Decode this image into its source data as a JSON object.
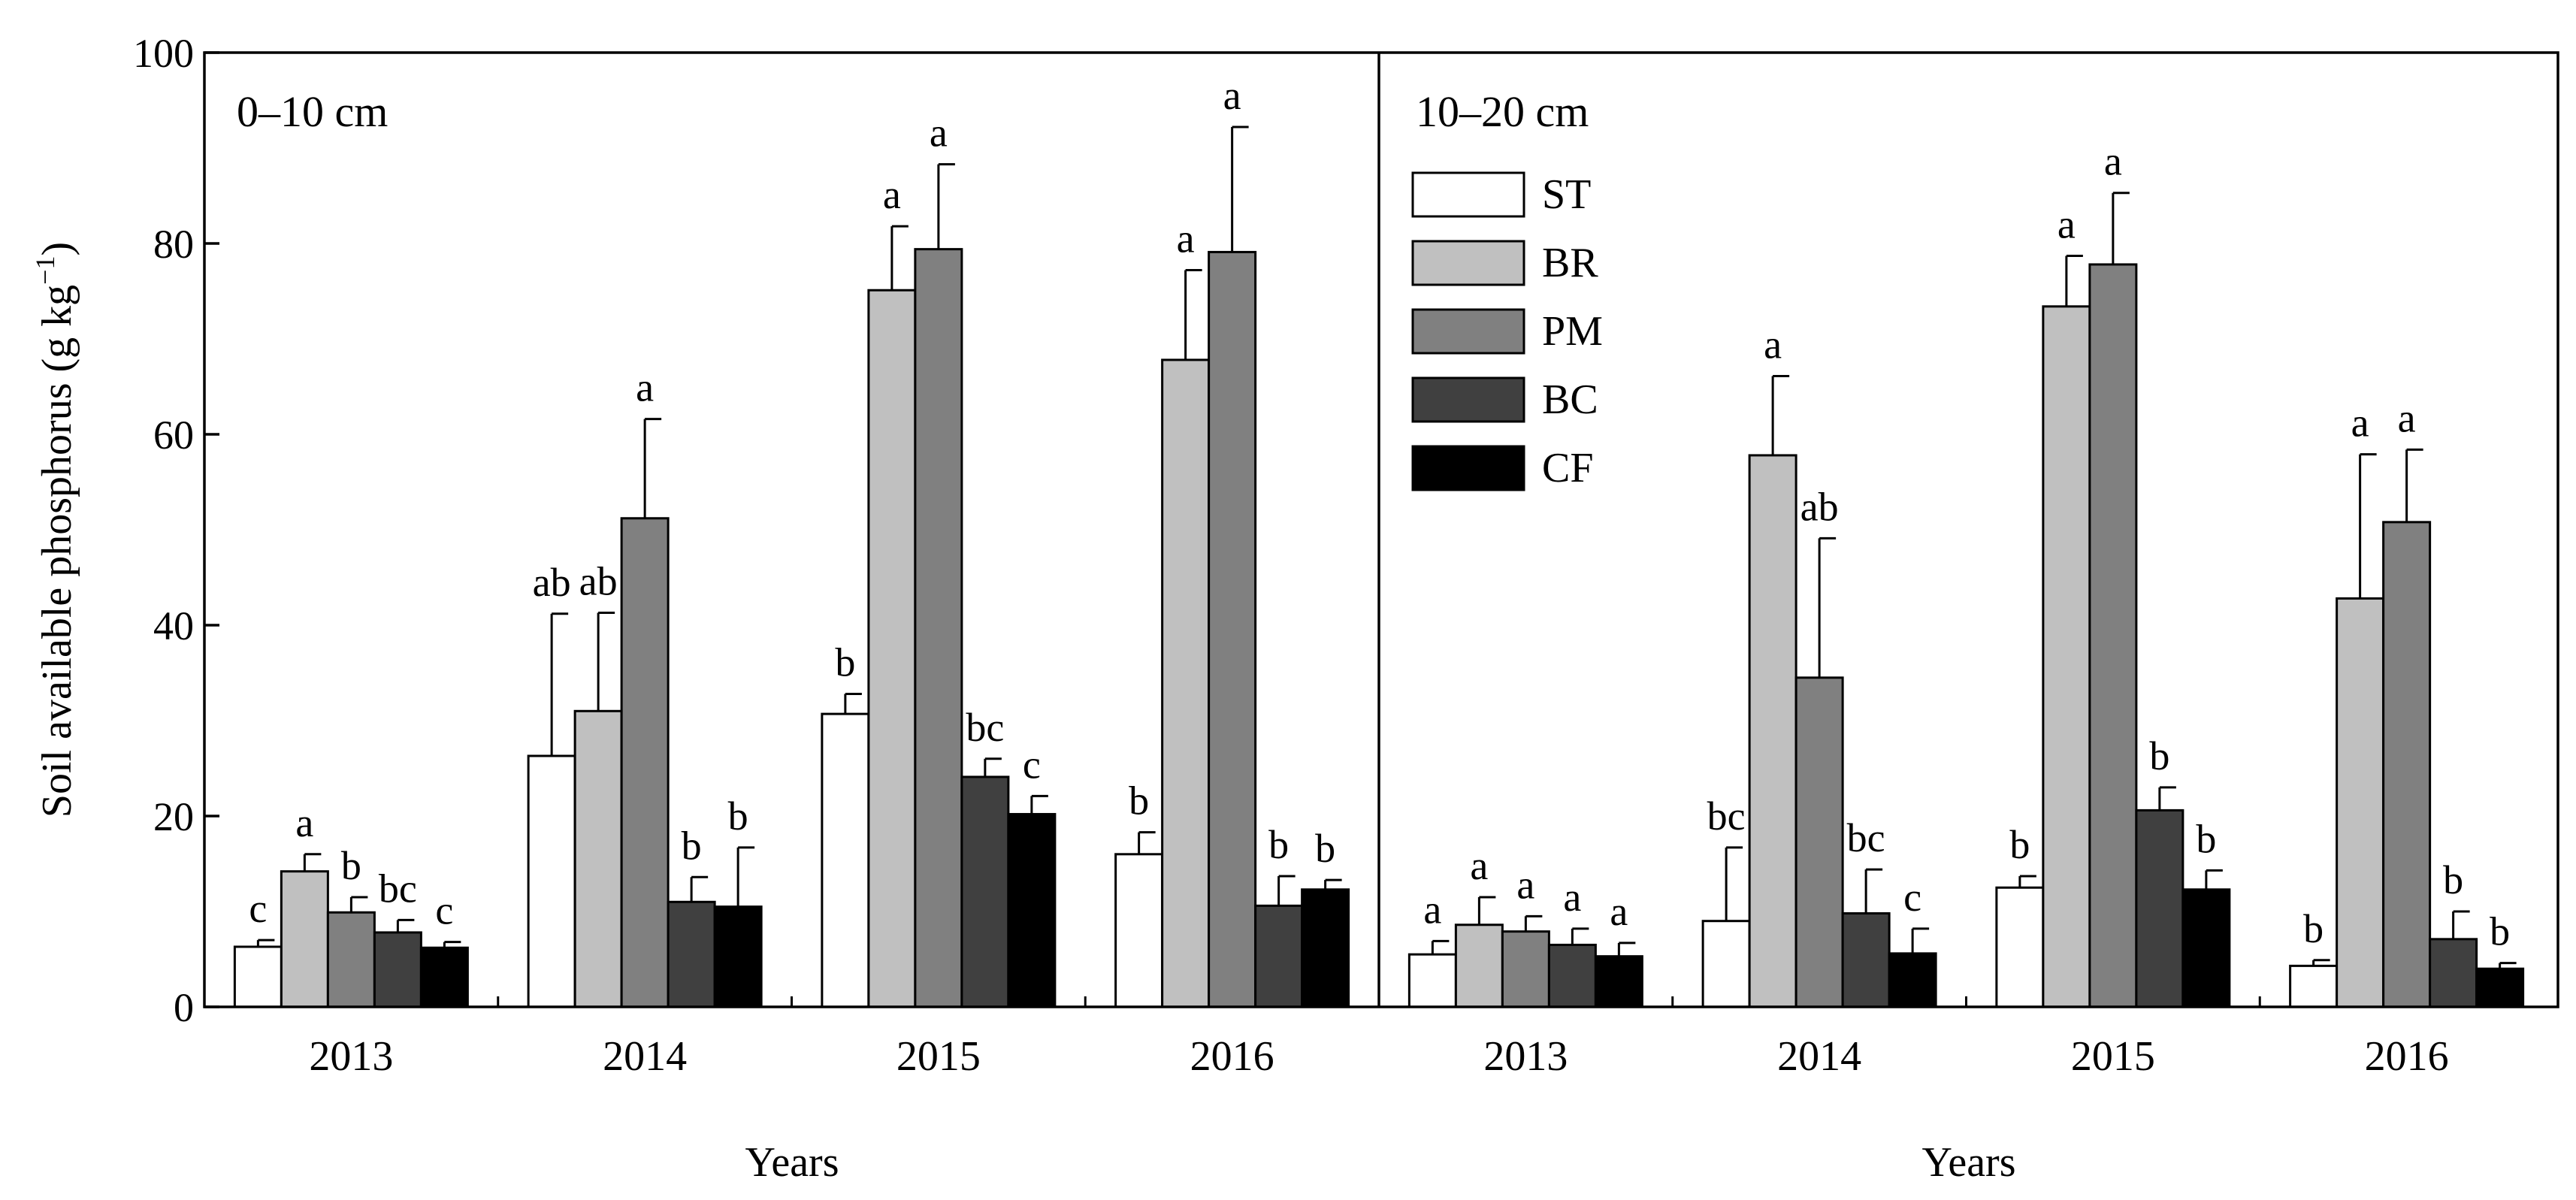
{
  "y_axis_label": "Soil available phosphorus (g kg",
  "y_axis_label_sup": "−1",
  "y_axis_label_close": ")",
  "chart_data": {
    "type": "bar",
    "ylabel": "Soil available phosphorus (g kg−1)",
    "ylim": [
      0,
      100
    ],
    "yticks": [
      0,
      20,
      40,
      60,
      80,
      100
    ],
    "legend": {
      "placement": "upper-left of right panel",
      "entries": [
        {
          "name": "ST",
          "color": "#ffffff"
        },
        {
          "name": "BR",
          "color": "#c0c0c0"
        },
        {
          "name": "PM",
          "color": "#808080"
        },
        {
          "name": "BC",
          "color": "#404040"
        },
        {
          "name": "CF",
          "color": "#000000"
        }
      ]
    },
    "panels": [
      {
        "title": "0–10 cm",
        "xlabel": "Years",
        "categories": [
          "2013",
          "2014",
          "2015",
          "2016"
        ],
        "series": [
          {
            "name": "ST",
            "values": [
              6.3,
              26.3,
              30.7,
              16.0
            ],
            "errors": [
              0.7,
              14.9,
              2.1,
              2.3
            ],
            "letters": [
              "c",
              "ab",
              "b",
              "b"
            ]
          },
          {
            "name": "BR",
            "values": [
              14.2,
              31.0,
              75.1,
              67.8
            ],
            "errors": [
              1.8,
              10.3,
              6.7,
              9.4
            ],
            "letters": [
              "a",
              "ab",
              "a",
              "a"
            ]
          },
          {
            "name": "PM",
            "values": [
              9.9,
              51.2,
              79.4,
              79.1
            ],
            "errors": [
              1.6,
              10.4,
              8.9,
              13.1
            ],
            "letters": [
              "b",
              "a",
              "a",
              "a"
            ]
          },
          {
            "name": "BC",
            "values": [
              7.8,
              11.0,
              24.1,
              10.6
            ],
            "errors": [
              1.3,
              2.6,
              1.9,
              3.1
            ],
            "letters": [
              "bc",
              "b",
              "bc",
              "b"
            ]
          },
          {
            "name": "CF",
            "values": [
              6.2,
              10.5,
              20.2,
              12.3
            ],
            "errors": [
              0.6,
              6.2,
              1.9,
              1.0
            ],
            "letters": [
              "c",
              "b",
              "c",
              "b"
            ]
          }
        ]
      },
      {
        "title": "10–20 cm",
        "xlabel": "Years",
        "categories": [
          "2013",
          "2014",
          "2015",
          "2016"
        ],
        "series": [
          {
            "name": "ST",
            "values": [
              5.5,
              9.0,
              12.5,
              4.3
            ],
            "errors": [
              1.4,
              7.7,
              1.2,
              0.6
            ],
            "letters": [
              "a",
              "bc",
              "b",
              "b"
            ]
          },
          {
            "name": "BR",
            "values": [
              8.6,
              57.8,
              73.4,
              42.8
            ],
            "errors": [
              2.9,
              8.3,
              5.3,
              15.1
            ],
            "letters": [
              "a",
              "a",
              "a",
              "a"
            ]
          },
          {
            "name": "PM",
            "values": [
              7.9,
              34.5,
              77.8,
              50.8
            ],
            "errors": [
              1.6,
              14.6,
              7.5,
              7.6
            ],
            "letters": [
              "a",
              "ab",
              "a",
              "a"
            ]
          },
          {
            "name": "BC",
            "values": [
              6.5,
              9.8,
              20.6,
              7.1
            ],
            "errors": [
              1.7,
              4.6,
              2.4,
              2.9
            ],
            "letters": [
              "a",
              "bc",
              "b",
              "b"
            ]
          },
          {
            "name": "CF",
            "values": [
              5.3,
              5.6,
              12.3,
              4.0
            ],
            "errors": [
              1.4,
              2.6,
              2.0,
              0.6
            ],
            "letters": [
              "a",
              "c",
              "b",
              "b"
            ]
          }
        ]
      }
    ]
  }
}
